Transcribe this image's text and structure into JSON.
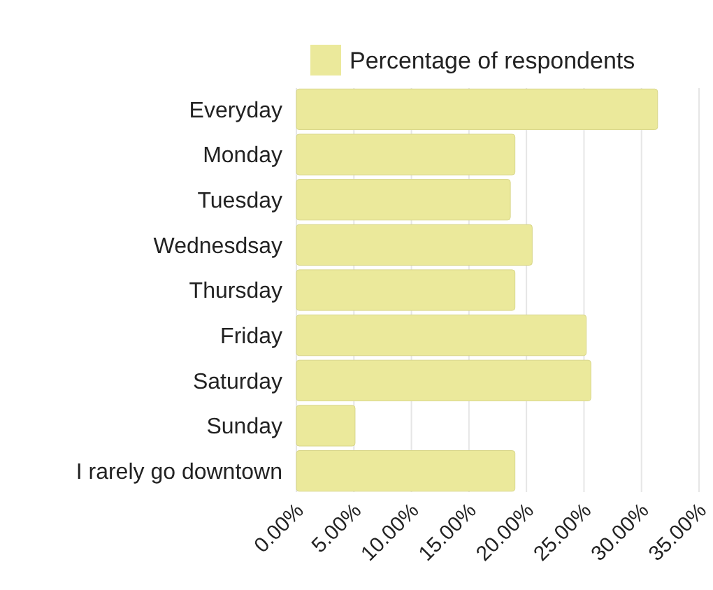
{
  "chart_data": {
    "type": "bar",
    "orientation": "horizontal",
    "categories": [
      "Everyday",
      "Monday",
      "Tuesday",
      "Wednesdsay",
      "Thursday",
      "Friday",
      "Saturday",
      "Sunday",
      "I rarely go downtown"
    ],
    "series": [
      {
        "name": "Percentage of respondents",
        "color": "#ebe99b",
        "values": [
          31.4,
          19.0,
          18.6,
          20.5,
          19.0,
          25.2,
          25.6,
          5.1,
          19.0
        ]
      }
    ],
    "xlim": [
      0,
      35
    ],
    "xticks": [
      {
        "value": 0,
        "label": "0.00%"
      },
      {
        "value": 5,
        "label": "5.00%"
      },
      {
        "value": 10,
        "label": "10.00%"
      },
      {
        "value": 15,
        "label": "15.00%"
      },
      {
        "value": 20,
        "label": "20.00%"
      },
      {
        "value": 25,
        "label": "25.00%"
      },
      {
        "value": 30,
        "label": "30.00%"
      },
      {
        "value": 35,
        "label": "35.00%"
      }
    ],
    "grid": "x",
    "legend": "top right"
  }
}
